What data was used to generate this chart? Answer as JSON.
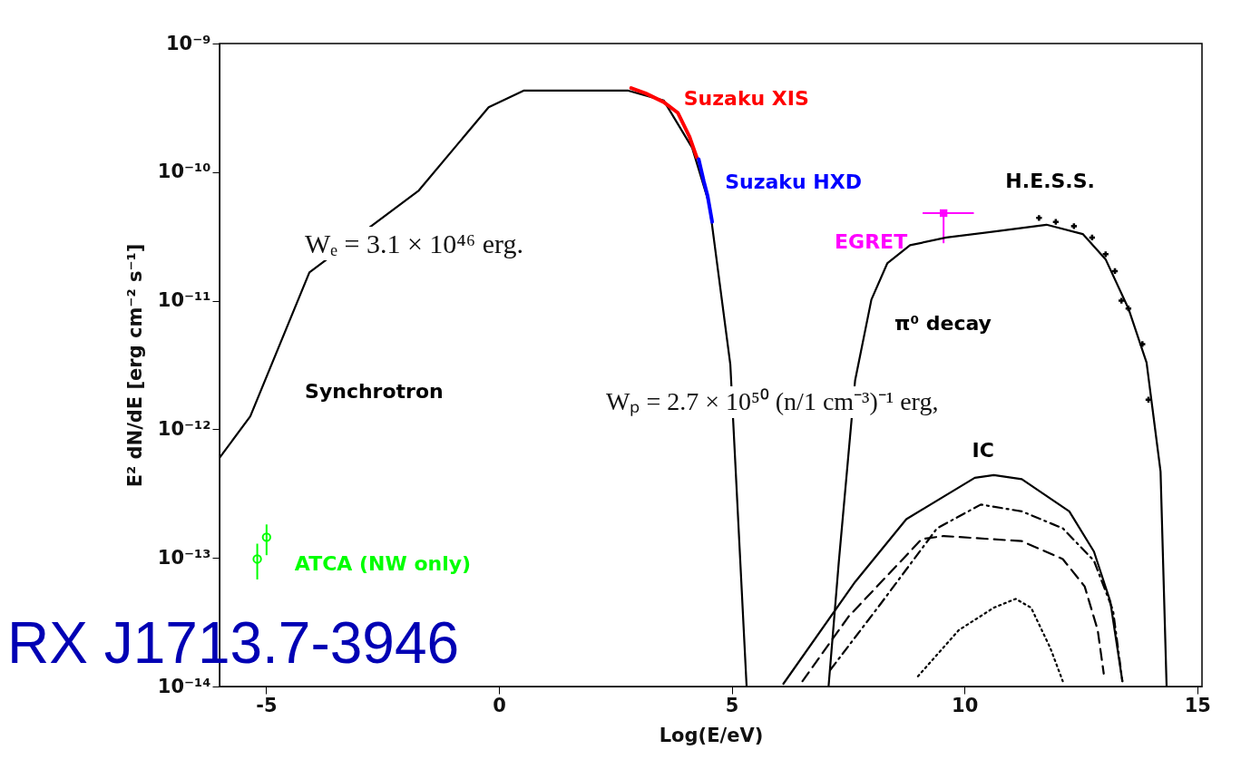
{
  "chart_data": {
    "type": "line",
    "title": "RX J1713.7-3946",
    "xlabel": "Log(E/eV)",
    "ylabel": "E² dN/dE [erg cm⁻² s⁻¹]",
    "log": "y",
    "xlim": [
      -6,
      15.1
    ],
    "xticks": [
      -5,
      0,
      5,
      10,
      15
    ],
    "ylim": [
      1e-14,
      1e-09
    ],
    "yticks": [
      {
        "value": 1e-14,
        "label": "10⁻¹⁴"
      },
      {
        "value": 1e-13,
        "label": "10⁻¹³"
      },
      {
        "value": 1e-12,
        "label": "10⁻¹²"
      },
      {
        "value": 1e-11,
        "label": "10⁻¹¹"
      },
      {
        "value": 1e-10,
        "label": "10⁻¹⁰"
      },
      {
        "value": 1e-09,
        "label": "10⁻⁹"
      }
    ],
    "annotations": [
      "Wₑ = 3.1 × 10⁴⁶ erg.",
      "Wₚ = 2.7 × 10⁵⁰ (n/1 cm⁻³)⁻¹ erg,"
    ],
    "series": [
      {
        "name": "Synchrotron",
        "color": "#000000",
        "line_style": "solid",
        "x": [
          -6.0,
          -5.34,
          -4.07,
          -1.72,
          -0.22,
          0.53,
          2.78,
          3.54,
          4.15,
          4.52,
          4.97,
          5.32
        ],
        "values": [
          6e-13,
          1.26e-12,
          1.66e-11,
          7.2e-11,
          3.2e-10,
          4.3e-10,
          4.3e-10,
          3.6e-10,
          1.55e-10,
          5.6e-11,
          3.2e-12,
          1e-14
        ]
      },
      {
        "name": "Suzaku XIS",
        "color": "#ff0000",
        "line_style": "solid",
        "x": [
          2.84,
          3.15,
          3.54,
          3.84,
          4.09,
          4.25
        ],
        "values": [
          4.5e-10,
          4.1e-10,
          3.5e-10,
          2.9e-10,
          1.9e-10,
          1.3e-10
        ]
      },
      {
        "name": "Suzaku HXD",
        "color": "#0000ff",
        "line_style": "solid",
        "x": [
          4.29,
          4.4,
          4.48,
          4.58
        ],
        "values": [
          1.26e-10,
          8.5e-11,
          6.6e-11,
          4.1e-11
        ]
      },
      {
        "name": "ATCA (NW only)",
        "type": "scatter",
        "color": "#00ff00",
        "marker": "circle",
        "x": [
          -5.19,
          -4.99
        ],
        "values": [
          9.8e-14,
          1.45e-13
        ],
        "errors": [
          [
            6.8e-14,
            1.29e-13
          ],
          [
            1.05e-13,
            1.82e-13
          ]
        ]
      },
      {
        "name": "EGRET",
        "type": "scatter",
        "color": "#ff00ff",
        "marker": "square",
        "x": [
          9.55
        ],
        "values": [
          4.8e-11
        ],
        "errors": [
          [
            2.8e-11,
            4.8e-11
          ]
        ],
        "xerrors": [
          [
            9.1,
            10.2
          ]
        ]
      },
      {
        "name": "H.E.S.S.",
        "type": "scatter",
        "color": "#000000",
        "marker": "cross",
        "x": [
          11.6,
          11.96,
          12.35,
          12.74,
          13.03,
          13.23,
          13.37,
          13.52,
          13.82,
          13.95
        ],
        "values": [
          4.4e-11,
          4.1e-11,
          3.8e-11,
          3.1e-11,
          2.3e-11,
          1.7e-11,
          1e-11,
          8.7e-12,
          4.6e-12,
          1.7e-12
        ]
      },
      {
        "name": "π⁰ decay",
        "color": "#000000",
        "line_style": "solid",
        "x": [
          7.08,
          7.3,
          7.65,
          8.0,
          8.34,
          8.83,
          9.61,
          10.78,
          11.76,
          12.54,
          13.03,
          13.52,
          13.91,
          14.21,
          14.34
        ],
        "values": [
          1e-14,
          9.3e-14,
          2.4e-12,
          1.02e-11,
          1.95e-11,
          2.7e-11,
          3.1e-11,
          3.5e-11,
          3.9e-11,
          3.3e-11,
          2.1e-11,
          8.7e-12,
          3.3e-12,
          4.7e-13,
          1e-14
        ]
      },
      {
        "name": "IC",
        "color": "#000000",
        "line_style": "solid",
        "x": [
          6.11,
          7.65,
          8.75,
          10.22,
          10.63,
          11.23,
          12.25,
          12.78,
          13.13,
          13.39
        ],
        "values": [
          1.05e-14,
          6.5e-14,
          2e-13,
          4.2e-13,
          4.4e-13,
          4.1e-13,
          2.3e-13,
          1.12e-13,
          4.6e-14,
          1.1e-14
        ]
      },
      {
        "color": "#000000",
        "line_style": "dashdot",
        "x": [
          7.12,
          8.2,
          9.41,
          10.35,
          11.23,
          12.11,
          12.78,
          13.19,
          13.39
        ],
        "values": [
          1.35e-14,
          4.4e-14,
          1.7e-13,
          2.6e-13,
          2.3e-13,
          1.7e-13,
          9.5e-14,
          3.9e-14,
          1.1e-14
        ]
      },
      {
        "color": "#000000",
        "line_style": "dashed",
        "x": [
          6.52,
          7.51,
          9.08,
          9.55,
          11.23,
          12.11,
          12.58,
          12.86,
          12.99
        ],
        "values": [
          1.1e-14,
          3.5e-14,
          1.4e-13,
          1.48e-13,
          1.35e-13,
          9.8e-14,
          6e-14,
          2.75e-14,
          1.26e-14
        ]
      },
      {
        "color": "#000000",
        "line_style": "dotted",
        "x": [
          9.0,
          9.88,
          10.63,
          11.1,
          11.43,
          11.84,
          12.11
        ],
        "values": [
          1.2e-14,
          2.75e-14,
          4.1e-14,
          4.8e-14,
          4.1e-14,
          2e-14,
          1.1e-14
        ]
      }
    ]
  }
}
